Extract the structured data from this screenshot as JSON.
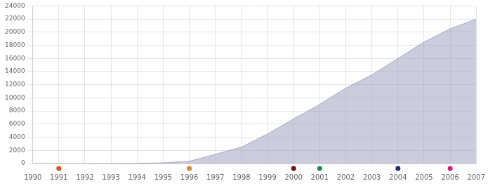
{
  "chart_data": {
    "type": "area",
    "x": [
      1990,
      1991,
      1992,
      1993,
      1994,
      1995,
      1996,
      1997,
      1998,
      1999,
      2000,
      2001,
      2002,
      2003,
      2004,
      2005,
      2006,
      2007
    ],
    "values": [
      0,
      0,
      5,
      15,
      40,
      100,
      350,
      1400,
      2500,
      4500,
      6800,
      9000,
      11500,
      13500,
      16000,
      18500,
      20500,
      22000
    ],
    "color": "#9999bb",
    "xlim": [
      1990,
      2007
    ],
    "ylim": [
      0,
      24000
    ],
    "xticks": [
      1990,
      1991,
      1992,
      1993,
      1994,
      1995,
      1996,
      1997,
      1998,
      1999,
      2000,
      2001,
      2002,
      2003,
      2004,
      2005,
      2006,
      2007
    ],
    "yticks": [
      0,
      2000,
      4000,
      6000,
      8000,
      10000,
      12000,
      14000,
      16000,
      18000,
      20000,
      22000,
      24000
    ],
    "grid": true,
    "dots": [
      {
        "x": 1991,
        "color": "#e05020"
      },
      {
        "x": 1996,
        "color": "#e08820"
      },
      {
        "x": 2000,
        "color": "#7a1010"
      },
      {
        "x": 2001,
        "color": "#208850"
      },
      {
        "x": 2004,
        "color": "#202880"
      },
      {
        "x": 2006,
        "color": "#d02070"
      }
    ]
  }
}
